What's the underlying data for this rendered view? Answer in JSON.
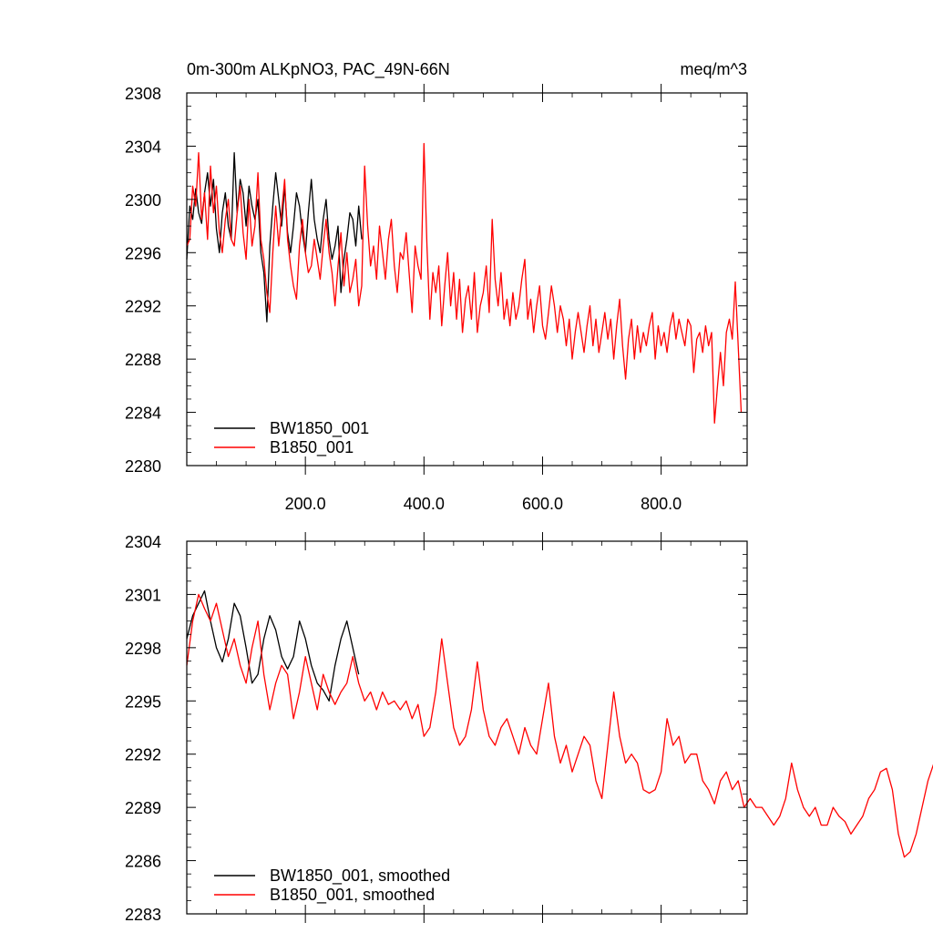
{
  "chart_data": [
    {
      "type": "line",
      "title": "0m-300m ALKpNO3, PAC_49N-66N",
      "units": "meq/m^3",
      "xlim": [
        0,
        945
      ],
      "ylim": [
        2280,
        2308
      ],
      "x_ticks": [
        200,
        400,
        600,
        800
      ],
      "x_tick_labels": [
        "200.0",
        "400.0",
        "600.0",
        "800.0"
      ],
      "y_ticks": [
        2280,
        2284,
        2288,
        2292,
        2296,
        2300,
        2304,
        2308
      ],
      "y_tick_labels": [
        "2280",
        "2284",
        "2288",
        "2292",
        "2296",
        "2300",
        "2304",
        "2308"
      ],
      "legend": "bottom-left",
      "grid": false,
      "series": [
        {
          "name": "BW1850_001",
          "color": "#000000",
          "x_start": 0,
          "x_step": 5,
          "values": [
            2295.5,
            2299.5,
            2298.5,
            2300.8,
            2299.0,
            2298.2,
            2300.5,
            2302.0,
            2299.5,
            2301.5,
            2297.8,
            2296.0,
            2299.0,
            2300.5,
            2298.0,
            2297.0,
            2303.5,
            2299.0,
            2301.5,
            2300.5,
            2298.0,
            2301.0,
            2299.5,
            2298.5,
            2300.0,
            2296.0,
            2294.5,
            2290.8,
            2296.5,
            2299.5,
            2302.0,
            2300.0,
            2298.0,
            2301.0,
            2297.5,
            2296.0,
            2298.0,
            2300.5,
            2299.5,
            2297.5,
            2296.0,
            2299.0,
            2301.5,
            2298.5,
            2297.0,
            2296.0,
            2298.5,
            2300.0,
            2297.0,
            2295.5,
            2296.5,
            2298.0,
            2293.0,
            2295.5,
            2297.0,
            2299.0,
            2298.5,
            2296.5,
            2299.5,
            2297.0
          ]
        },
        {
          "name": "B1850_001",
          "color": "#ff0000",
          "x_start": 0,
          "x_step": 5,
          "values": [
            2296.5,
            2297.0,
            2301.0,
            2299.5,
            2303.5,
            2298.5,
            2300.5,
            2297.0,
            2302.5,
            2299.0,
            2301.0,
            2297.5,
            2296.0,
            2298.5,
            2300.0,
            2297.0,
            2296.5,
            2299.0,
            2301.0,
            2297.5,
            2295.5,
            2300.0,
            2296.5,
            2298.0,
            2302.0,
            2297.0,
            2295.5,
            2293.0,
            2291.5,
            2296.0,
            2299.5,
            2296.5,
            2299.0,
            2301.5,
            2297.0,
            2295.0,
            2293.5,
            2292.5,
            2296.5,
            2298.5,
            2296.0,
            2294.5,
            2295.0,
            2297.0,
            2295.5,
            2294.0,
            2296.5,
            2298.5,
            2296.0,
            2294.5,
            2292.0,
            2295.0,
            2297.5,
            2293.5,
            2296.0,
            2293.0,
            2294.0,
            2295.5,
            2292.0,
            2293.5,
            2302.5,
            2298.0,
            2295.0,
            2296.5,
            2294.0,
            2298.0,
            2296.0,
            2294.0,
            2297.0,
            2298.5,
            2295.0,
            2293.0,
            2296.0,
            2295.5,
            2297.5,
            2294.5,
            2291.5,
            2296.5,
            2295.0,
            2294.0,
            2304.2,
            2296.5,
            2291.0,
            2294.5,
            2293.0,
            2295.0,
            2290.5,
            2293.5,
            2296.0,
            2292.0,
            2294.5,
            2291.0,
            2294.0,
            2290.0,
            2292.5,
            2293.5,
            2291.0,
            2294.5,
            2290.0,
            2292.0,
            2293.0,
            2295.0,
            2291.5,
            2298.5,
            2294.0,
            2292.0,
            2294.5,
            2291.0,
            2292.5,
            2290.5,
            2293.0,
            2291.0,
            2292.0,
            2294.0,
            2295.5,
            2291.0,
            2292.5,
            2290.0,
            2292.0,
            2293.5,
            2290.5,
            2289.5,
            2291.5,
            2293.5,
            2292.0,
            2290.0,
            2292.0,
            2291.0,
            2289.0,
            2291.0,
            2288.0,
            2290.0,
            2291.5,
            2290.0,
            2288.5,
            2290.5,
            2292.0,
            2289.0,
            2291.0,
            2288.5,
            2290.0,
            2291.5,
            2289.5,
            2291.0,
            2288.0,
            2290.5,
            2292.5,
            2289.0,
            2286.5,
            2289.5,
            2291.0,
            2288.0,
            2290.5,
            2288.5,
            2290.0,
            2289.0,
            2290.5,
            2291.5,
            2288.0,
            2290.5,
            2289.0,
            2290.0,
            2288.5,
            2290.5,
            2291.5,
            2289.5,
            2291.0,
            2290.0,
            2289.0,
            2291.0,
            2290.5,
            2287.0,
            2289.5,
            2290.0,
            2288.5,
            2290.5,
            2289.0,
            2290.0,
            2283.2,
            2286.0,
            2288.5,
            2286.0,
            2290.0,
            2291.0,
            2289.5,
            2293.8,
            2289.0,
            2284.0
          ]
        }
      ]
    },
    {
      "type": "line",
      "xlim": [
        0,
        945
      ],
      "ylim": [
        2283,
        2304
      ],
      "y_ticks": [
        2283,
        2286,
        2289,
        2292,
        2295,
        2298,
        2301,
        2304
      ],
      "y_tick_labels": [
        "2283",
        "2286",
        "2289",
        "2292",
        "2295",
        "2298",
        "2301",
        "2304"
      ],
      "legend": "bottom-left",
      "grid": false,
      "series": [
        {
          "name": "BW1850_001, smoothed",
          "color": "#000000",
          "x_start": 0,
          "x_step": 10,
          "values": [
            2298.5,
            2299.8,
            2300.5,
            2301.2,
            2299.5,
            2298.0,
            2297.2,
            2298.5,
            2300.5,
            2299.8,
            2298.0,
            2296.0,
            2296.5,
            2298.5,
            2299.8,
            2299.0,
            2297.5,
            2296.8,
            2297.5,
            2299.5,
            2298.5,
            2297.0,
            2296.0,
            2295.6,
            2295.0,
            2297.0,
            2298.5,
            2299.5,
            2298.0,
            2296.5
          ]
        },
        {
          "name": "B1850_001, smoothed",
          "color": "#ff0000",
          "x_start": 0,
          "x_step": 10,
          "values": [
            2297.0,
            2299.5,
            2301.0,
            2300.2,
            2299.5,
            2300.5,
            2299.0,
            2297.5,
            2298.5,
            2297.0,
            2296.0,
            2298.0,
            2299.5,
            2296.5,
            2294.5,
            2296.0,
            2297.0,
            2296.5,
            2294.0,
            2295.5,
            2297.5,
            2296.0,
            2294.5,
            2296.5,
            2295.5,
            2294.8,
            2295.5,
            2296.0,
            2297.5,
            2296.0,
            2295.0,
            2295.5,
            2294.5,
            2295.5,
            2294.8,
            2295.0,
            2294.5,
            2295.0,
            2294.0,
            2294.8,
            2293.0,
            2293.5,
            2295.5,
            2298.5,
            2296.0,
            2293.5,
            2292.5,
            2293.0,
            2294.5,
            2297.2,
            2294.5,
            2293.0,
            2292.5,
            2293.5,
            2294.0,
            2293.0,
            2292.0,
            2293.5,
            2292.5,
            2292.0,
            2294.0,
            2296.0,
            2293.0,
            2291.5,
            2292.5,
            2291.0,
            2292.0,
            2293.0,
            2292.5,
            2290.5,
            2289.5,
            2292.5,
            2295.5,
            2293.0,
            2291.5,
            2292.0,
            2291.5,
            2290.0,
            2289.8,
            2290.0,
            2291.0,
            2294.0,
            2292.5,
            2293.0,
            2291.5,
            2292.0,
            2292.0,
            2290.5,
            2290.0,
            2289.2,
            2290.5,
            2291.0,
            2290.0,
            2290.5,
            2289.0,
            2289.5,
            2289.0,
            2289.0,
            2288.5,
            2288.0,
            2288.5,
            2289.5,
            2291.5,
            2290.0,
            2289.0,
            2288.5,
            2289.0,
            2288.0,
            2288.0,
            2289.0,
            2288.5,
            2288.2,
            2287.5,
            2288.0,
            2288.5,
            2289.5,
            2290.0,
            2291.0,
            2291.2,
            2290.0,
            2287.5,
            2286.2,
            2286.5,
            2287.5,
            2289.0,
            2290.5,
            2291.5,
            2290.5,
            2288.8
          ]
        }
      ]
    }
  ]
}
